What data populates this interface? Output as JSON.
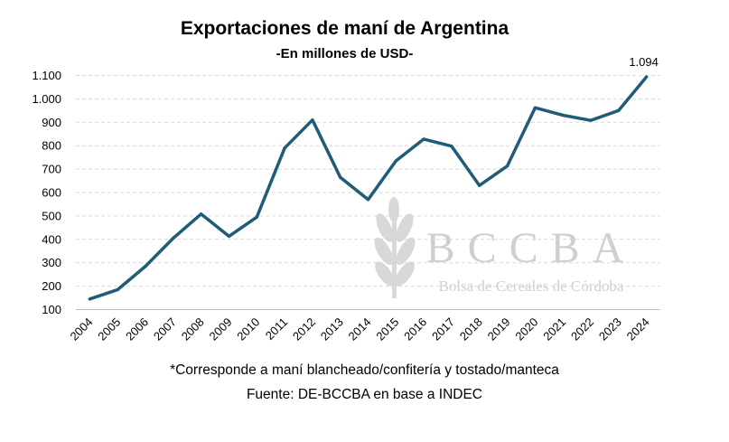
{
  "title": "Exportaciones de maní de Argentina",
  "subtitle": "-En millones de USD-",
  "notes": {
    "footnote": "*Corresponde a maní blancheado/confitería y tostado/manteca",
    "source": "Fuente: DE-BCCBA en base a INDEC"
  },
  "watermark": {
    "name": "BCCBA",
    "full_name": "Bolsa de Cereales de Córdoba",
    "icon": "wheat-icon"
  },
  "colors": {
    "line": "#1f5c7a",
    "grid": "#d9d9d9",
    "watermark": "#cfcfcf"
  },
  "chart_data": {
    "type": "line",
    "title": "Exportaciones de maní de Argentina",
    "subtitle": "-En millones de USD-",
    "xlabel": "",
    "ylabel": "",
    "ylim": [
      100,
      1100
    ],
    "yticks": [
      100,
      200,
      300,
      400,
      500,
      600,
      700,
      800,
      900,
      1000,
      1100
    ],
    "ytick_labels": [
      "100",
      "200",
      "300",
      "400",
      "500",
      "600",
      "700",
      "800",
      "900",
      "1.000",
      "1.100"
    ],
    "grid": "horizontal dashed",
    "legend": "none",
    "categories": [
      "2004",
      "2005",
      "2006",
      "2007",
      "2008",
      "2009",
      "2010",
      "2011",
      "2012",
      "2013",
      "2014",
      "2015",
      "2016",
      "2017",
      "2018",
      "2019",
      "2020",
      "2021",
      "2022",
      "2023",
      "2024"
    ],
    "series": [
      {
        "values": [
          145,
          185,
          285,
          405,
          508,
          413,
          495,
          790,
          910,
          665,
          570,
          735,
          828,
          798,
          630,
          713,
          962,
          930,
          908,
          950,
          1094
        ]
      }
    ],
    "data_labels": [
      {
        "category": "2024",
        "label": "1.094"
      }
    ]
  }
}
